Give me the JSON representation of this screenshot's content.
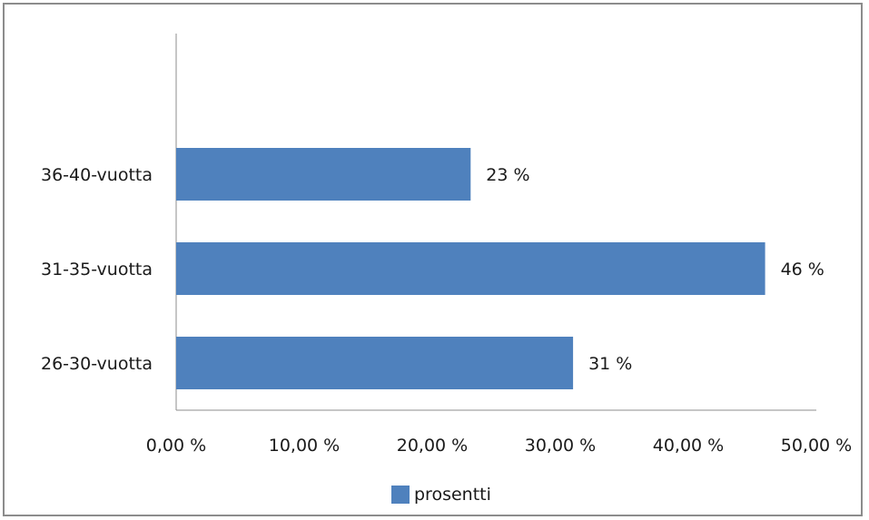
{
  "chart_data": {
    "type": "bar",
    "orientation": "horizontal",
    "categories": [
      "36-40-vuotta",
      "31-35-vuotta",
      "26-30-vuotta"
    ],
    "series": [
      {
        "name": "prosentti",
        "values": [
          23,
          46,
          31
        ],
        "data_labels": [
          "23 %",
          "46 %",
          "31 %"
        ],
        "color": "#4f81bd"
      }
    ],
    "xlim": [
      0,
      50
    ],
    "x_ticks": [
      0,
      10,
      20,
      30,
      40,
      50
    ],
    "x_tick_labels": [
      "0,00 %",
      "10,00 %",
      "20,00 %",
      "30,00 %",
      "40,00 %",
      "50,00 %"
    ],
    "grid": false,
    "legend": {
      "position": "bottom",
      "label": "prosentti"
    }
  }
}
